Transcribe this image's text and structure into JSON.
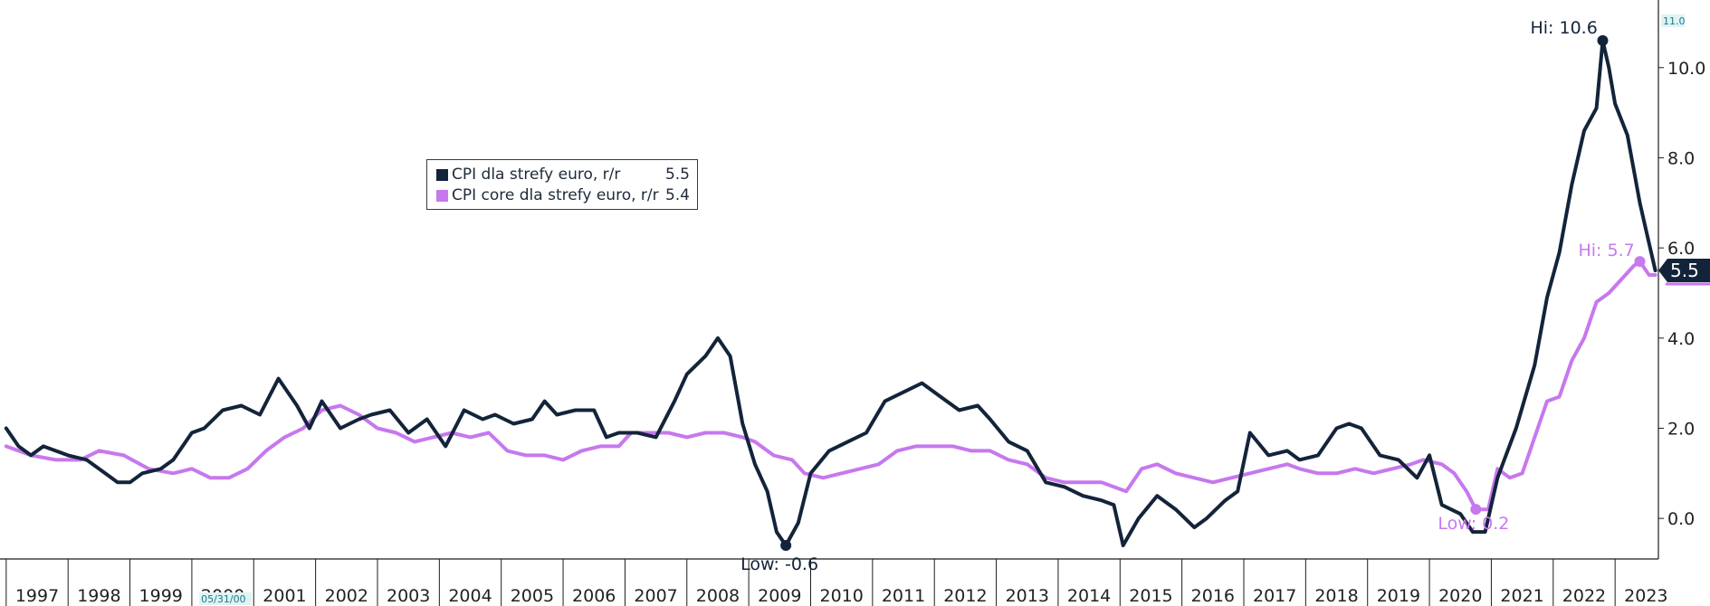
{
  "chart_data": {
    "type": "line",
    "xlim": [
      1996.9,
      2023.7
    ],
    "ylim": [
      -0.9,
      11.5
    ],
    "y_ticks": [
      0.0,
      2.0,
      4.0,
      6.0,
      8.0,
      10.0
    ],
    "y_tick_labels": [
      "0.0",
      "2.0",
      "4.0",
      "6.0",
      "8.0",
      "10.0"
    ],
    "y_top_tick_label": "11.0",
    "x_tick_labels": [
      "1997",
      "1998",
      "1999",
      "2000",
      "2001",
      "2002",
      "2003",
      "2004",
      "2005",
      "2006",
      "2007",
      "2008",
      "2009",
      "2010",
      "2011",
      "2012",
      "2013",
      "2014",
      "2015",
      "2016",
      "2017",
      "2018",
      "2019",
      "2020",
      "2021",
      "2022",
      "2023"
    ],
    "x_hidden_label": "05/31/00",
    "grid": false,
    "legend_position": "upper-left",
    "series": [
      {
        "name": "CPI dla strefy euro, r/r",
        "legend_value": "5.5",
        "last_value_label": "5.5",
        "color": "#13243a",
        "points": [
          [
            1997.0,
            2.0
          ],
          [
            1997.2,
            1.6
          ],
          [
            1997.4,
            1.4
          ],
          [
            1997.6,
            1.6
          ],
          [
            1997.8,
            1.5
          ],
          [
            1998.0,
            1.4
          ],
          [
            1998.3,
            1.3
          ],
          [
            1998.6,
            1.0
          ],
          [
            1998.8,
            0.8
          ],
          [
            1999.0,
            0.8
          ],
          [
            1999.2,
            1.0
          ],
          [
            1999.5,
            1.1
          ],
          [
            1999.7,
            1.3
          ],
          [
            2000.0,
            1.9
          ],
          [
            2000.2,
            2.0
          ],
          [
            2000.5,
            2.4
          ],
          [
            2000.8,
            2.5
          ],
          [
            2001.1,
            2.3
          ],
          [
            2001.4,
            3.1
          ],
          [
            2001.7,
            2.5
          ],
          [
            2001.9,
            2.0
          ],
          [
            2002.1,
            2.6
          ],
          [
            2002.4,
            2.0
          ],
          [
            2002.7,
            2.2
          ],
          [
            2002.9,
            2.3
          ],
          [
            2003.2,
            2.4
          ],
          [
            2003.5,
            1.9
          ],
          [
            2003.8,
            2.2
          ],
          [
            2004.1,
            1.6
          ],
          [
            2004.4,
            2.4
          ],
          [
            2004.7,
            2.2
          ],
          [
            2004.9,
            2.3
          ],
          [
            2005.2,
            2.1
          ],
          [
            2005.5,
            2.2
          ],
          [
            2005.7,
            2.6
          ],
          [
            2005.9,
            2.3
          ],
          [
            2006.2,
            2.4
          ],
          [
            2006.5,
            2.4
          ],
          [
            2006.7,
            1.8
          ],
          [
            2006.9,
            1.9
          ],
          [
            2007.2,
            1.9
          ],
          [
            2007.5,
            1.8
          ],
          [
            2007.8,
            2.6
          ],
          [
            2008.0,
            3.2
          ],
          [
            2008.3,
            3.6
          ],
          [
            2008.5,
            4.0
          ],
          [
            2008.7,
            3.6
          ],
          [
            2008.9,
            2.1
          ],
          [
            2009.1,
            1.2
          ],
          [
            2009.3,
            0.6
          ],
          [
            2009.45,
            -0.3
          ],
          [
            2009.6,
            -0.6
          ],
          [
            2009.8,
            -0.1
          ],
          [
            2010.0,
            1.0
          ],
          [
            2010.3,
            1.5
          ],
          [
            2010.6,
            1.7
          ],
          [
            2010.9,
            1.9
          ],
          [
            2011.2,
            2.6
          ],
          [
            2011.5,
            2.8
          ],
          [
            2011.8,
            3.0
          ],
          [
            2012.1,
            2.7
          ],
          [
            2012.4,
            2.4
          ],
          [
            2012.7,
            2.5
          ],
          [
            2012.9,
            2.2
          ],
          [
            2013.2,
            1.7
          ],
          [
            2013.5,
            1.5
          ],
          [
            2013.8,
            0.8
          ],
          [
            2014.1,
            0.7
          ],
          [
            2014.4,
            0.5
          ],
          [
            2014.7,
            0.4
          ],
          [
            2014.9,
            0.3
          ],
          [
            2015.05,
            -0.6
          ],
          [
            2015.3,
            0.0
          ],
          [
            2015.6,
            0.5
          ],
          [
            2015.9,
            0.2
          ],
          [
            2016.2,
            -0.2
          ],
          [
            2016.4,
            0.0
          ],
          [
            2016.7,
            0.4
          ],
          [
            2016.9,
            0.6
          ],
          [
            2017.1,
            1.9
          ],
          [
            2017.4,
            1.4
          ],
          [
            2017.7,
            1.5
          ],
          [
            2017.9,
            1.3
          ],
          [
            2018.2,
            1.4
          ],
          [
            2018.5,
            2.0
          ],
          [
            2018.7,
            2.1
          ],
          [
            2018.9,
            2.0
          ],
          [
            2019.2,
            1.4
          ],
          [
            2019.5,
            1.3
          ],
          [
            2019.8,
            0.9
          ],
          [
            2020.0,
            1.4
          ],
          [
            2020.2,
            0.3
          ],
          [
            2020.5,
            0.1
          ],
          [
            2020.7,
            -0.3
          ],
          [
            2020.9,
            -0.3
          ],
          [
            2021.1,
            0.9
          ],
          [
            2021.4,
            2.0
          ],
          [
            2021.7,
            3.4
          ],
          [
            2021.9,
            4.9
          ],
          [
            2022.1,
            5.9
          ],
          [
            2022.3,
            7.4
          ],
          [
            2022.5,
            8.6
          ],
          [
            2022.7,
            9.1
          ],
          [
            2022.8,
            10.6
          ],
          [
            2022.9,
            10.0
          ],
          [
            2023.0,
            9.2
          ],
          [
            2023.2,
            8.5
          ],
          [
            2023.4,
            7.0
          ],
          [
            2023.55,
            6.1
          ],
          [
            2023.65,
            5.5
          ]
        ]
      },
      {
        "name": "CPI core dla strefy euro, r/r",
        "legend_value": "5.4",
        "color": "#c678ee",
        "points": [
          [
            1997.0,
            1.6
          ],
          [
            1997.4,
            1.4
          ],
          [
            1997.8,
            1.3
          ],
          [
            1998.2,
            1.3
          ],
          [
            1998.5,
            1.5
          ],
          [
            1998.9,
            1.4
          ],
          [
            1999.3,
            1.1
          ],
          [
            1999.7,
            1.0
          ],
          [
            2000.0,
            1.1
          ],
          [
            2000.3,
            0.9
          ],
          [
            2000.6,
            0.9
          ],
          [
            2000.9,
            1.1
          ],
          [
            2001.2,
            1.5
          ],
          [
            2001.5,
            1.8
          ],
          [
            2001.8,
            2.0
          ],
          [
            2002.1,
            2.4
          ],
          [
            2002.4,
            2.5
          ],
          [
            2002.7,
            2.3
          ],
          [
            2003.0,
            2.0
          ],
          [
            2003.3,
            1.9
          ],
          [
            2003.6,
            1.7
          ],
          [
            2003.9,
            1.8
          ],
          [
            2004.2,
            1.9
          ],
          [
            2004.5,
            1.8
          ],
          [
            2004.8,
            1.9
          ],
          [
            2005.1,
            1.5
          ],
          [
            2005.4,
            1.4
          ],
          [
            2005.7,
            1.4
          ],
          [
            2006.0,
            1.3
          ],
          [
            2006.3,
            1.5
          ],
          [
            2006.6,
            1.6
          ],
          [
            2006.9,
            1.6
          ],
          [
            2007.1,
            1.9
          ],
          [
            2007.4,
            1.9
          ],
          [
            2007.7,
            1.9
          ],
          [
            2008.0,
            1.8
          ],
          [
            2008.3,
            1.9
          ],
          [
            2008.6,
            1.9
          ],
          [
            2008.9,
            1.8
          ],
          [
            2009.1,
            1.7
          ],
          [
            2009.4,
            1.4
          ],
          [
            2009.7,
            1.3
          ],
          [
            2009.9,
            1.0
          ],
          [
            2010.2,
            0.9
          ],
          [
            2010.5,
            1.0
          ],
          [
            2010.8,
            1.1
          ],
          [
            2011.1,
            1.2
          ],
          [
            2011.4,
            1.5
          ],
          [
            2011.7,
            1.6
          ],
          [
            2012.0,
            1.6
          ],
          [
            2012.3,
            1.6
          ],
          [
            2012.6,
            1.5
          ],
          [
            2012.9,
            1.5
          ],
          [
            2013.2,
            1.3
          ],
          [
            2013.5,
            1.2
          ],
          [
            2013.8,
            0.9
          ],
          [
            2014.1,
            0.8
          ],
          [
            2014.4,
            0.8
          ],
          [
            2014.7,
            0.8
          ],
          [
            2014.9,
            0.7
          ],
          [
            2015.1,
            0.6
          ],
          [
            2015.35,
            1.1
          ],
          [
            2015.6,
            1.2
          ],
          [
            2015.9,
            1.0
          ],
          [
            2016.2,
            0.9
          ],
          [
            2016.5,
            0.8
          ],
          [
            2016.8,
            0.9
          ],
          [
            2017.1,
            1.0
          ],
          [
            2017.4,
            1.1
          ],
          [
            2017.7,
            1.2
          ],
          [
            2017.9,
            1.1
          ],
          [
            2018.2,
            1.0
          ],
          [
            2018.5,
            1.0
          ],
          [
            2018.8,
            1.1
          ],
          [
            2019.1,
            1.0
          ],
          [
            2019.4,
            1.1
          ],
          [
            2019.7,
            1.2
          ],
          [
            2019.9,
            1.3
          ],
          [
            2020.2,
            1.2
          ],
          [
            2020.4,
            1.0
          ],
          [
            2020.6,
            0.6
          ],
          [
            2020.75,
            0.2
          ],
          [
            2020.95,
            0.2
          ],
          [
            2021.1,
            1.1
          ],
          [
            2021.3,
            0.9
          ],
          [
            2021.5,
            1.0
          ],
          [
            2021.7,
            1.8
          ],
          [
            2021.9,
            2.6
          ],
          [
            2022.1,
            2.7
          ],
          [
            2022.3,
            3.5
          ],
          [
            2022.5,
            4.0
          ],
          [
            2022.7,
            4.8
          ],
          [
            2022.9,
            5.0
          ],
          [
            2023.1,
            5.3
          ],
          [
            2023.3,
            5.6
          ],
          [
            2023.4,
            5.7
          ],
          [
            2023.55,
            5.4
          ],
          [
            2023.65,
            5.4
          ]
        ]
      }
    ],
    "annotations": [
      {
        "label": "Hi: 10.6",
        "series": 0,
        "x": 2022.8,
        "y": 10.6
      },
      {
        "label": "Low: -0.6",
        "series": 0,
        "x": 2009.6,
        "y": -0.6
      },
      {
        "label": "Hi: 5.7",
        "series": 1,
        "x": 2023.4,
        "y": 5.7
      },
      {
        "label": "Low: 0.2",
        "series": 1,
        "x": 2020.75,
        "y": 0.2
      }
    ]
  }
}
